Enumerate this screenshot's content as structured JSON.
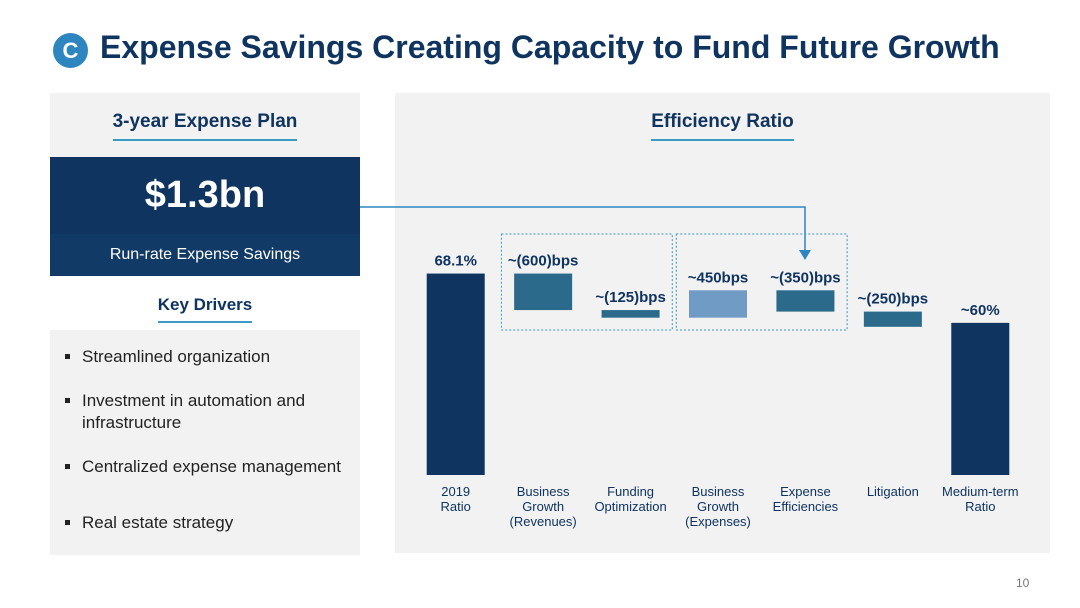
{
  "header": {
    "badge": "C",
    "title": "Expense Savings Creating Capacity to Fund Future Growth"
  },
  "left_panel": {
    "heading": "3-year Expense Plan",
    "amount": "$1.3bn",
    "amount_caption": "Run-rate Expense Savings",
    "drivers_heading": "Key Drivers",
    "drivers": [
      "Streamlined organization",
      "Investment in automation and infrastructure",
      "Centralized expense management",
      "Real estate strategy"
    ]
  },
  "page_number": "10",
  "chart_data": {
    "type": "waterfall",
    "title": "Efficiency Ratio",
    "categories": [
      "2019\nRatio",
      "Business\nGrowth\n(Revenues)",
      "Funding\nOptimization",
      "Business\nGrowth\n(Expenses)",
      "Expense\nEfficiencies",
      "Litigation",
      "Medium-term\nRatio"
    ],
    "values": [
      68.1,
      -6,
      -1.25,
      4.5,
      -3.5,
      -2.5,
      60
    ],
    "value_labels": [
      "68.1%",
      "~(600)bps",
      "~(125)bps",
      "~450bps",
      "~(350)bps",
      "~(250)bps",
      "~60%"
    ],
    "totals": [
      true,
      false,
      false,
      false,
      false,
      false,
      true
    ],
    "colors": {
      "total": "#0f3460",
      "increase": "#6f9bc5",
      "decrease": "#2b6a8a"
    },
    "ylim": [
      35,
      70
    ]
  }
}
